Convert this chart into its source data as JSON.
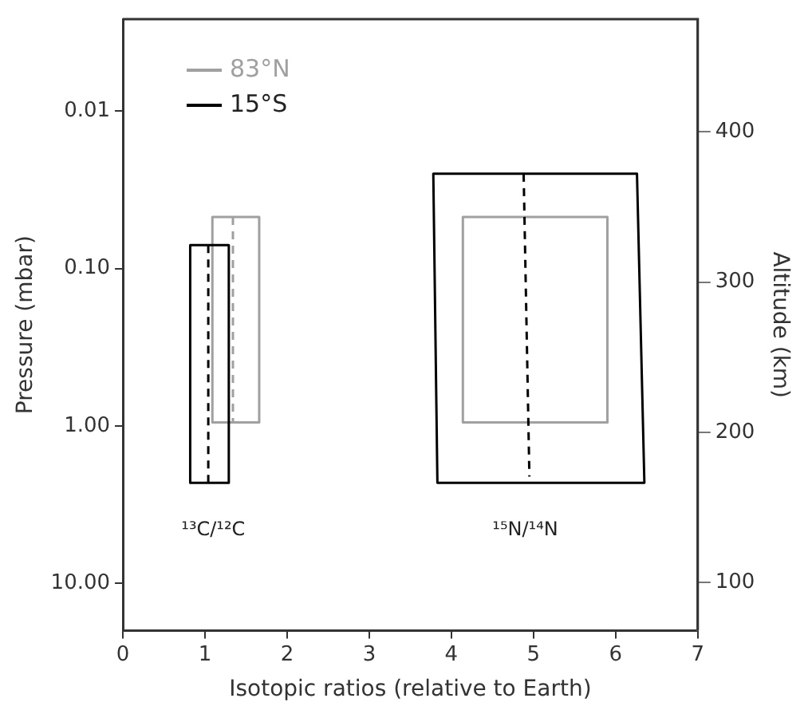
{
  "chart_data": {
    "type": "line",
    "xlabel": "Isotopic ratios (relative to Earth)",
    "ylabel": "Pressure (mbar)",
    "y2label": "Altitude (km)",
    "xlim": [
      0,
      7
    ],
    "xticks": [
      0,
      1,
      2,
      3,
      4,
      5,
      6,
      7
    ],
    "ylim": [
      20,
      0.0026
    ],
    "yticks": [
      {
        "value": 0.01,
        "label": "0.01"
      },
      {
        "value": 0.1,
        "label": "0.10"
      },
      {
        "value": 1,
        "label": "1.00"
      },
      {
        "value": 10,
        "label": "10.00"
      }
    ],
    "y2lim": [
      68,
      475
    ],
    "y2ticks": [
      100,
      200,
      300,
      400
    ],
    "log": "y",
    "grid": false,
    "legend": "top left",
    "marker": "none",
    "series": [
      {
        "name": "83°N",
        "color": "#a0a0a0",
        "line_style": "solid",
        "x": [
          1.09,
          1.66,
          1.66,
          1.09,
          1.09,
          1.66
        ],
        "values": [
          0.047,
          0.047,
          0.95,
          0.95,
          0.047,
          0.047
        ]
      },
      {
        "name": "15°S",
        "color": "#000000",
        "line_style": "solid",
        "x": [
          0.82,
          1.29,
          1.29,
          0.82,
          0.82,
          1.29
        ],
        "values": [
          0.071,
          0.071,
          2.3,
          2.3,
          0.071,
          0.071
        ]
      },
      {
        "color": "#a0a0a0",
        "line_style": "solid",
        "x": [
          4.14,
          5.9,
          5.9,
          4.14,
          4.14,
          5.9
        ],
        "values": [
          0.047,
          0.047,
          0.95,
          0.95,
          0.047,
          0.047
        ]
      },
      {
        "color": "#000000",
        "line_style": "solid",
        "x": [
          3.78,
          6.26,
          6.35,
          3.83,
          3.78,
          6.26
        ],
        "values": [
          0.025,
          0.025,
          2.3,
          2.3,
          0.025,
          0.025
        ]
      },
      {
        "color": "#a0a0a0",
        "line_style": "dashed",
        "x": [
          1.34,
          1.34
        ],
        "values": [
          0.047,
          0.95
        ]
      },
      {
        "color": "#000000",
        "line_style": "dashed",
        "x": [
          1.04,
          1.04
        ],
        "values": [
          0.071,
          2.3
        ]
      },
      {
        "color": "#000000",
        "line_style": "dashed",
        "x": [
          4.88,
          4.95
        ],
        "values": [
          0.025,
          2.1
        ]
      }
    ],
    "annotations": [
      {
        "text": "¹³C/¹²C",
        "x": 1.1,
        "y": 2.3
      },
      {
        "text": "¹⁵N/¹⁴N",
        "x": 4.9,
        "y": 2.3
      }
    ]
  }
}
